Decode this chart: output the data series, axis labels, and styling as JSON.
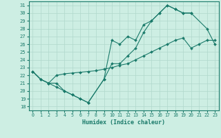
{
  "xlabel": "Humidex (Indice chaleur)",
  "xlim": [
    -0.5,
    23.5
  ],
  "ylim": [
    17.5,
    31.5
  ],
  "yticks": [
    18,
    19,
    20,
    21,
    22,
    23,
    24,
    25,
    26,
    27,
    28,
    29,
    30,
    31
  ],
  "xticks": [
    0,
    1,
    2,
    3,
    4,
    5,
    6,
    7,
    8,
    9,
    10,
    11,
    12,
    13,
    14,
    15,
    16,
    17,
    18,
    19,
    20,
    21,
    22,
    23
  ],
  "bg_color": "#cdeee3",
  "line_color": "#1a7a6a",
  "grid_color": "#b0d8cc",
  "line1_x": [
    0,
    1,
    2,
    3,
    4,
    5,
    6,
    7,
    9,
    10,
    11,
    12,
    13,
    14,
    15,
    16,
    17,
    18,
    19,
    20,
    22,
    23
  ],
  "line1_y": [
    22.5,
    21.5,
    21.0,
    21.0,
    20.0,
    19.5,
    19.0,
    18.5,
    21.5,
    26.5,
    26.0,
    27.0,
    26.5,
    28.5,
    29.0,
    30.0,
    31.0,
    30.5,
    30.0,
    30.0,
    28.0,
    26.0
  ],
  "line2_x": [
    0,
    1,
    2,
    3,
    4,
    5,
    6,
    7,
    8,
    9,
    10,
    11,
    12,
    13,
    14,
    15,
    16,
    17,
    18,
    19,
    20,
    21,
    22,
    23
  ],
  "line2_y": [
    22.5,
    21.5,
    21.0,
    22.0,
    22.2,
    22.3,
    22.4,
    22.5,
    22.6,
    22.8,
    23.0,
    23.3,
    23.5,
    24.0,
    24.5,
    25.0,
    25.5,
    26.0,
    26.5,
    26.8,
    25.5,
    26.0,
    26.5,
    26.5
  ],
  "line3_x": [
    0,
    1,
    2,
    3,
    4,
    5,
    6,
    7,
    9,
    10,
    11,
    12,
    13,
    14,
    15,
    16,
    17,
    18,
    19,
    20
  ],
  "line3_y": [
    22.5,
    21.5,
    21.0,
    20.5,
    20.0,
    19.5,
    19.0,
    18.5,
    21.5,
    23.5,
    23.5,
    24.5,
    25.5,
    27.5,
    29.0,
    30.0,
    31.0,
    30.5,
    30.0,
    30.0
  ]
}
